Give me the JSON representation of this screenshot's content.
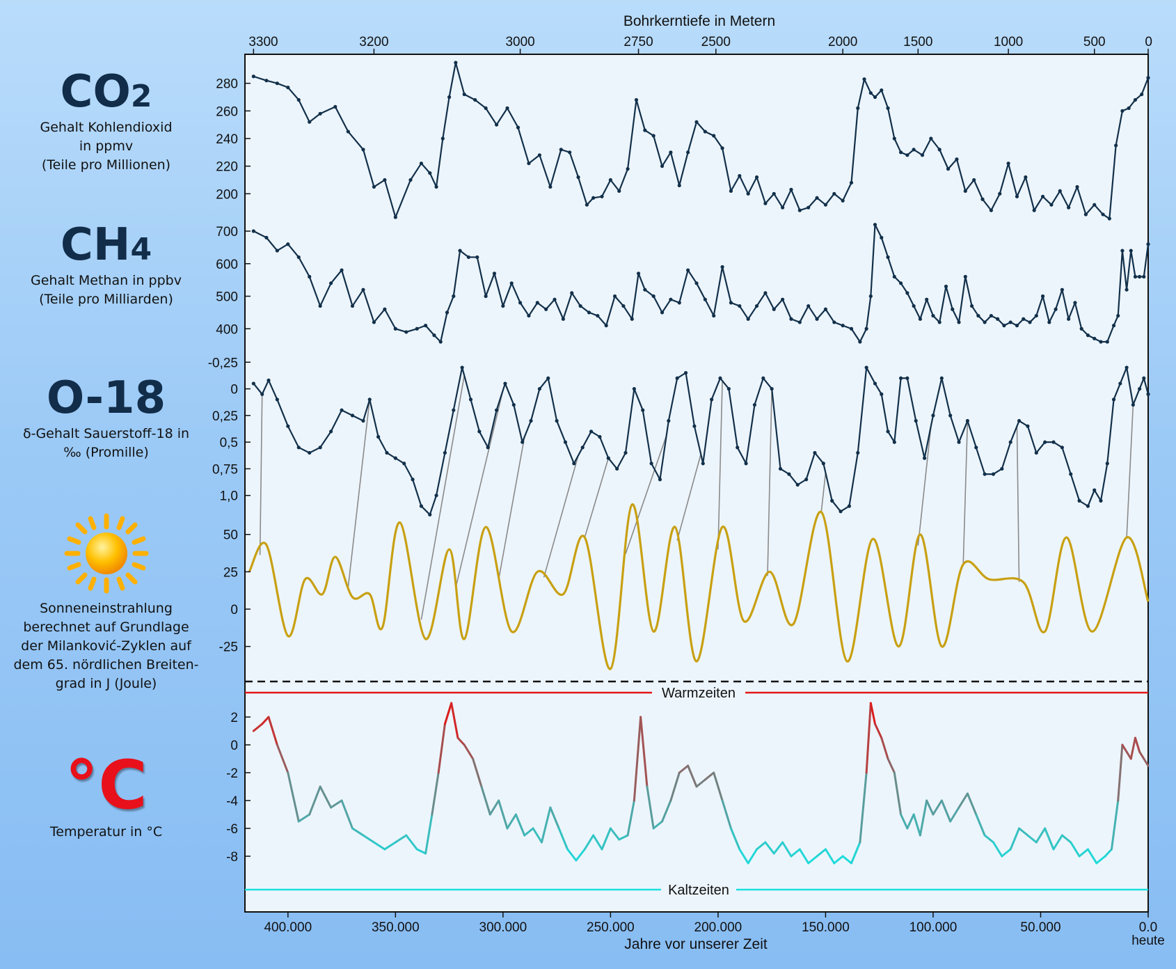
{
  "top_axis": {
    "title": "Bohrkerntiefe in Metern",
    "ticks": [
      {
        "label": "3300",
        "age": 416000
      },
      {
        "label": "3200",
        "age": 360000
      },
      {
        "label": "3000",
        "age": 292000
      },
      {
        "label": "2750",
        "age": 237000
      },
      {
        "label": "2500",
        "age": 201000
      },
      {
        "label": "2000",
        "age": 142000
      },
      {
        "label": "1500",
        "age": 107000
      },
      {
        "label": "1000",
        "age": 65000
      },
      {
        "label": "500",
        "age": 25000
      },
      {
        "label": "0",
        "age": 0
      }
    ]
  },
  "bottom_axis": {
    "title": "Jahre vor unserer Zeit",
    "ticks": [
      "400.000",
      "350.000",
      "300.000",
      "250.000",
      "200.000",
      "150.000",
      "100.000",
      "50.000",
      "0.0"
    ],
    "tick_values": [
      400000,
      350000,
      300000,
      250000,
      200000,
      150000,
      100000,
      50000,
      0
    ],
    "extra_label": "heute"
  },
  "labels": {
    "co2_title": "CO",
    "co2_sub": "2",
    "co2_desc": "Gehalt Kohlendioxid\nin ppmv\n(Teile pro Millionen)",
    "ch4_title": "CH",
    "ch4_sub": "4",
    "ch4_desc": "Gehalt Methan in ppbv\n(Teile pro Milliarden)",
    "o18_title": "O-18",
    "o18_desc": "δ-Gehalt Sauerstoff-18 in\n‰ (Promille)",
    "sun_desc": "Sonneneinstrahlung\nberechnet auf Grundlage\nder Milanković-Zyklen auf\ndem 65. nördlichen Breiten-\ngrad in J (Joule)",
    "temp_symbol": "°C",
    "temp_desc": "Temperatur in °C",
    "warm_label": "Warmzeiten",
    "cold_label": "Kaltzeiten"
  },
  "colors": {
    "line_dark": "#12304a",
    "insolation": "#c8a012",
    "warm": "#e01818",
    "cold": "#1ae0e0",
    "tie_lines": "#8a8a8a",
    "sun": "#ffb000"
  },
  "chart_data": [
    {
      "type": "line",
      "name": "CO2",
      "x_unit": "Jahre vor unserer Zeit",
      "yticks": [
        200,
        220,
        240,
        260,
        280
      ],
      "ylim": [
        180,
        300
      ],
      "x": [
        416000,
        410000,
        405000,
        400000,
        395000,
        390000,
        385000,
        378000,
        372000,
        365000,
        360000,
        355000,
        350000,
        343000,
        338000,
        334000,
        331000,
        328000,
        325000,
        322000,
        318000,
        313000,
        308000,
        303000,
        298000,
        293000,
        288000,
        283000,
        278000,
        273000,
        269000,
        265000,
        261000,
        258000,
        254000,
        250000,
        246000,
        242000,
        238000,
        234000,
        230000,
        226000,
        222000,
        218000,
        214000,
        210000,
        206000,
        202000,
        198000,
        194000,
        190000,
        186000,
        182000,
        178000,
        174000,
        170000,
        166000,
        162000,
        158000,
        154000,
        150000,
        146000,
        142000,
        138000,
        135000,
        132000,
        129000,
        127000,
        124000,
        121000,
        118000,
        115000,
        112000,
        109000,
        105000,
        101000,
        97000,
        93000,
        89000,
        85000,
        81000,
        77000,
        73000,
        69000,
        65000,
        61000,
        57000,
        53000,
        49000,
        45000,
        41000,
        37000,
        33000,
        29000,
        25000,
        21000,
        18000,
        15000,
        12000,
        9000,
        6000,
        3000,
        0
      ],
      "values": [
        285,
        282,
        280,
        277,
        268,
        252,
        258,
        263,
        245,
        232,
        205,
        210,
        183,
        210,
        222,
        215,
        205,
        240,
        270,
        295,
        272,
        268,
        262,
        250,
        262,
        248,
        222,
        228,
        205,
        232,
        230,
        212,
        192,
        197,
        198,
        210,
        202,
        218,
        268,
        246,
        242,
        220,
        230,
        206,
        230,
        252,
        245,
        242,
        233,
        202,
        213,
        200,
        212,
        193,
        200,
        190,
        203,
        188,
        190,
        197,
        192,
        200,
        195,
        208,
        262,
        283,
        273,
        270,
        275,
        262,
        240,
        230,
        228,
        232,
        228,
        240,
        232,
        218,
        225,
        202,
        210,
        196,
        188,
        200,
        222,
        198,
        212,
        188,
        198,
        192,
        202,
        190,
        205,
        185,
        192,
        185,
        182,
        235,
        260,
        262,
        268,
        272,
        284
      ]
    },
    {
      "type": "line",
      "name": "CH4",
      "x_unit": "Jahre vor unserer Zeit",
      "yticks": [
        400,
        500,
        600,
        700
      ],
      "ylim": [
        330,
        730
      ],
      "x": [
        416000,
        410000,
        405000,
        400000,
        395000,
        390000,
        385000,
        380000,
        375000,
        370000,
        365000,
        360000,
        355000,
        350000,
        345000,
        340000,
        336000,
        332000,
        329000,
        326000,
        323000,
        320000,
        316000,
        312000,
        308000,
        304000,
        300000,
        296000,
        292000,
        288000,
        284000,
        280000,
        276000,
        272000,
        268000,
        264000,
        260000,
        256000,
        252000,
        248000,
        244000,
        240000,
        237000,
        234000,
        230000,
        226000,
        222000,
        218000,
        214000,
        210000,
        206000,
        202000,
        198000,
        194000,
        190000,
        186000,
        182000,
        178000,
        174000,
        170000,
        166000,
        162000,
        158000,
        154000,
        150000,
        146000,
        142000,
        138000,
        134000,
        131000,
        129000,
        127000,
        124000,
        121000,
        118000,
        115000,
        112000,
        109000,
        106000,
        103000,
        100000,
        97000,
        94000,
        91000,
        88000,
        85000,
        82000,
        79000,
        76000,
        73000,
        70000,
        67000,
        64000,
        61000,
        58000,
        55000,
        52000,
        49000,
        46000,
        43000,
        40000,
        37000,
        34000,
        31000,
        28000,
        25000,
        22000,
        19000,
        16000,
        14000,
        12000,
        10000,
        8000,
        6000,
        4000,
        2000,
        0
      ],
      "values": [
        700,
        680,
        640,
        660,
        620,
        560,
        470,
        540,
        580,
        470,
        520,
        420,
        460,
        400,
        390,
        400,
        410,
        380,
        360,
        450,
        500,
        640,
        620,
        620,
        500,
        570,
        470,
        540,
        480,
        440,
        480,
        460,
        490,
        430,
        510,
        470,
        450,
        440,
        410,
        500,
        470,
        430,
        570,
        520,
        500,
        450,
        490,
        480,
        580,
        540,
        490,
        440,
        590,
        480,
        470,
        430,
        470,
        510,
        460,
        490,
        430,
        420,
        470,
        430,
        460,
        420,
        410,
        400,
        360,
        400,
        500,
        720,
        680,
        620,
        560,
        540,
        510,
        470,
        430,
        490,
        440,
        420,
        530,
        460,
        420,
        560,
        470,
        440,
        420,
        440,
        430,
        410,
        420,
        410,
        430,
        420,
        440,
        500,
        420,
        460,
        520,
        430,
        480,
        400,
        380,
        370,
        360,
        360,
        410,
        440,
        640,
        520,
        640,
        560,
        560,
        560,
        660
      ]
    },
    {
      "type": "line",
      "name": "O-18",
      "x_unit": "Jahre vor unserer Zeit",
      "yticks": [
        "-0,25",
        "0",
        "0,25",
        "0,5",
        "0,75",
        "1,0"
      ],
      "ytick_values": [
        -0.25,
        0,
        0.25,
        0.5,
        0.75,
        1.0
      ],
      "ylim": [
        -0.35,
        1.25
      ],
      "inverted": true,
      "x": [
        416000,
        412000,
        409000,
        405000,
        400000,
        395000,
        390000,
        385000,
        380000,
        375000,
        370000,
        365000,
        362000,
        358000,
        354000,
        350000,
        346000,
        342000,
        338000,
        334000,
        331000,
        327000,
        323000,
        319000,
        315000,
        311000,
        307000,
        303000,
        299000,
        295000,
        291000,
        287000,
        283000,
        279000,
        275000,
        271000,
        267000,
        263000,
        259000,
        255000,
        251000,
        247000,
        243000,
        239000,
        235000,
        231000,
        227000,
        223000,
        219000,
        215000,
        211000,
        207000,
        203000,
        199000,
        195000,
        191000,
        187000,
        183000,
        179000,
        175000,
        171000,
        167000,
        163000,
        159000,
        155000,
        151000,
        147000,
        143000,
        139000,
        135000,
        131000,
        127000,
        124000,
        121000,
        118000,
        115000,
        112000,
        108000,
        104000,
        100000,
        96000,
        92000,
        88000,
        84000,
        80000,
        76000,
        72000,
        68000,
        64000,
        60000,
        56000,
        52000,
        48000,
        44000,
        40000,
        36000,
        32000,
        28000,
        25000,
        22000,
        19000,
        16000,
        13000,
        10000,
        7000,
        4000,
        2000,
        0
      ],
      "values": [
        -0.05,
        0.05,
        -0.08,
        0.1,
        0.35,
        0.55,
        0.6,
        0.55,
        0.4,
        0.2,
        0.25,
        0.3,
        0.1,
        0.45,
        0.6,
        0.65,
        0.7,
        0.85,
        1.1,
        1.18,
        1.0,
        0.6,
        0.2,
        -0.2,
        0.1,
        0.4,
        0.55,
        0.2,
        -0.05,
        0.15,
        0.5,
        0.3,
        0.0,
        -0.1,
        0.3,
        0.5,
        0.7,
        0.55,
        0.4,
        0.45,
        0.65,
        0.75,
        0.6,
        0.0,
        0.2,
        0.7,
        0.85,
        0.3,
        -0.1,
        -0.15,
        0.35,
        0.7,
        0.1,
        -0.1,
        0.0,
        0.55,
        0.7,
        0.15,
        -0.1,
        0.0,
        0.75,
        0.8,
        0.9,
        0.85,
        0.6,
        0.7,
        1.05,
        1.15,
        1.1,
        0.6,
        -0.2,
        -0.05,
        0.05,
        0.4,
        0.5,
        -0.1,
        -0.1,
        0.3,
        0.65,
        0.25,
        -0.1,
        0.25,
        0.5,
        0.3,
        0.55,
        0.8,
        0.8,
        0.75,
        0.5,
        0.3,
        0.35,
        0.6,
        0.5,
        0.5,
        0.55,
        0.8,
        1.05,
        1.1,
        0.95,
        1.05,
        0.7,
        0.1,
        -0.05,
        -0.2,
        0.15,
        0.0,
        -0.1,
        0.05
      ]
    },
    {
      "type": "line",
      "name": "Sonneneinstrahlung",
      "x_unit": "Jahre vor unserer Zeit",
      "yticks": [
        -25,
        0,
        25,
        50
      ],
      "ylim": [
        -48,
        62
      ],
      "x": [
        418000,
        410000,
        400000,
        392000,
        384000,
        378000,
        370000,
        362000,
        356000,
        348000,
        336000,
        325000,
        318000,
        308000,
        296000,
        284000,
        272000,
        262000,
        250000,
        240000,
        230000,
        220000,
        210000,
        198000,
        188000,
        176000,
        165000,
        152000,
        140000,
        128000,
        116000,
        106000,
        96000,
        86000,
        74000,
        58000,
        48000,
        38000,
        26000,
        10000,
        0
      ],
      "values": [
        25,
        43,
        -18,
        20,
        10,
        35,
        8,
        10,
        -12,
        58,
        -20,
        40,
        -20,
        55,
        -15,
        25,
        10,
        48,
        -40,
        70,
        -15,
        55,
        -35,
        55,
        -8,
        25,
        -10,
        65,
        -35,
        47,
        -25,
        50,
        -25,
        30,
        20,
        18,
        -15,
        48,
        -15,
        48,
        5
      ]
    },
    {
      "type": "line",
      "name": "Temperatur",
      "x_unit": "Jahre vor unserer Zeit",
      "yticks": [
        -8,
        -6,
        -4,
        -2,
        0,
        2
      ],
      "ylim": [
        -10,
        3.5
      ],
      "x": [
        416000,
        412000,
        409000,
        405000,
        400000,
        395000,
        390000,
        385000,
        380000,
        375000,
        370000,
        365000,
        360000,
        355000,
        350000,
        345000,
        340000,
        336000,
        333000,
        330000,
        327000,
        324000,
        321000,
        318000,
        314000,
        310000,
        306000,
        302000,
        298000,
        294000,
        290000,
        286000,
        282000,
        278000,
        274000,
        270000,
        266000,
        262000,
        258000,
        254000,
        250000,
        246000,
        242000,
        239000,
        236000,
        233000,
        230000,
        226000,
        222000,
        218000,
        214000,
        210000,
        206000,
        202000,
        198000,
        194000,
        190000,
        186000,
        182000,
        178000,
        174000,
        170000,
        166000,
        162000,
        158000,
        154000,
        150000,
        146000,
        142000,
        138000,
        134000,
        131000,
        129000,
        127000,
        124000,
        121000,
        118000,
        115000,
        112000,
        109000,
        106000,
        103000,
        100000,
        96000,
        92000,
        88000,
        84000,
        80000,
        76000,
        72000,
        68000,
        64000,
        60000,
        56000,
        52000,
        48000,
        44000,
        40000,
        36000,
        32000,
        28000,
        24000,
        20000,
        17000,
        14000,
        12000,
        10000,
        8000,
        6000,
        4000,
        2000,
        0
      ],
      "values": [
        1.0,
        1.5,
        2.0,
        0.0,
        -2.0,
        -5.5,
        -5.0,
        -3.0,
        -4.5,
        -4.0,
        -6.0,
        -6.5,
        -7.0,
        -7.5,
        -7.0,
        -6.5,
        -7.5,
        -7.8,
        -5.0,
        -2.0,
        1.5,
        3.0,
        0.5,
        0.0,
        -1.0,
        -3.0,
        -5.0,
        -4.0,
        -6.0,
        -5.0,
        -6.5,
        -6.0,
        -7.0,
        -4.5,
        -6.0,
        -7.5,
        -8.3,
        -7.5,
        -6.5,
        -7.5,
        -6.0,
        -6.8,
        -6.5,
        -4.0,
        2.0,
        -3.0,
        -6.0,
        -5.5,
        -4.0,
        -2.0,
        -1.5,
        -3.0,
        -2.5,
        -2.0,
        -4.0,
        -6.0,
        -7.5,
        -8.5,
        -7.5,
        -7.0,
        -7.8,
        -7.0,
        -8.0,
        -7.5,
        -8.5,
        -8.0,
        -7.5,
        -8.5,
        -8.0,
        -8.5,
        -7.0,
        -2.0,
        3.0,
        1.5,
        0.5,
        -1.0,
        -2.0,
        -5.0,
        -6.0,
        -5.0,
        -6.5,
        -4.0,
        -5.0,
        -4.0,
        -5.5,
        -4.5,
        -3.5,
        -5.0,
        -6.5,
        -7.0,
        -8.0,
        -7.5,
        -6.0,
        -6.5,
        -7.0,
        -6.0,
        -7.5,
        -6.5,
        -7.0,
        -8.0,
        -7.5,
        -8.5,
        -8.0,
        -7.5,
        -4.0,
        0.0,
        -0.5,
        -1.0,
        0.5,
        -0.5,
        -1.0,
        -1.5
      ]
    }
  ],
  "tie_pairs": [
    [
      412000,
      413000
    ],
    [
      362000,
      372000
    ],
    [
      318000,
      338000
    ],
    [
      300000,
      322000
    ],
    [
      290000,
      302000
    ],
    [
      265000,
      281000
    ],
    [
      251000,
      262000
    ],
    [
      224000,
      243000
    ],
    [
      208000,
      219000
    ],
    [
      198000,
      200000
    ],
    [
      175000,
      177000
    ],
    [
      150000,
      152000
    ],
    [
      101000,
      107000
    ],
    [
      84000,
      86000
    ],
    [
      61000,
      60000
    ],
    [
      7000,
      10000
    ]
  ]
}
